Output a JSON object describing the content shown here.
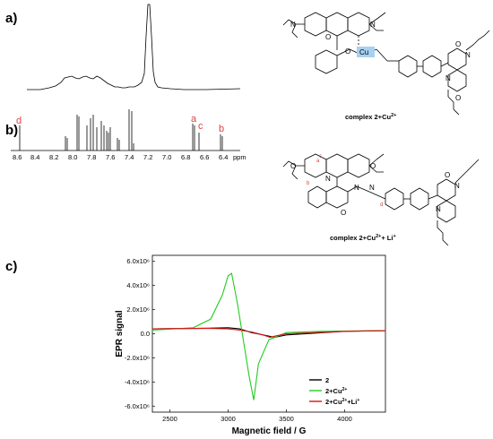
{
  "panels": {
    "a": {
      "label": "a)",
      "complex_caption": "complex 2+Cu",
      "complex_sup": "2+"
    },
    "b": {
      "label": "b)",
      "complex_caption": "complex 2+Cu",
      "complex_sup": "2+",
      "caption_tail": "+ Li",
      "caption_tail_sup": "+",
      "axis_ticks": [
        "8.6",
        "8.4",
        "8.2",
        "8.0",
        "7.8",
        "7.6",
        "7.4",
        "7.2",
        "7.0",
        "6.8",
        "6.6",
        "6.4"
      ],
      "axis_unit": "ppm",
      "peak_labels": [
        "a",
        "c",
        "b",
        "d"
      ]
    },
    "c": {
      "label": "c)"
    }
  },
  "chemistry": {
    "cu_label": "Cu",
    "atoms": [
      "N",
      "N",
      "O",
      "O",
      "O",
      "N",
      "N",
      "O",
      "O",
      "O",
      "N",
      "N",
      "N",
      "O",
      "O",
      "N",
      "N",
      "a",
      "b",
      "c",
      "d"
    ]
  },
  "chart_data": {
    "type": "line",
    "title": "",
    "xlabel": "Magnetic field / G",
    "ylabel": "EPR signal",
    "xlim": [
      2350,
      4350
    ],
    "ylim": [
      -6500000.0,
      6500000.0
    ],
    "x_ticks": [
      "2500",
      "3000",
      "3500",
      "4000"
    ],
    "y_ticks": [
      "6.0x10⁶",
      "4.0x10⁶",
      "2.0x10⁶",
      "0.0",
      "-2.0x10⁶",
      "-4.0x10⁶",
      "-6.0x10⁶"
    ],
    "legend_position": "bottom-right",
    "series": [
      {
        "name": "2",
        "color": "#000000",
        "x": [
          2350,
          2800,
          3000,
          3100,
          3150,
          3200,
          3250,
          3300,
          3400,
          3500,
          4000,
          4350
        ],
        "y": [
          400000.0,
          450000.0,
          500000.0,
          400000.0,
          250000.0,
          100000.0,
          0.0,
          -100000.0,
          -300000.0,
          -100000.0,
          200000.0,
          250000.0
        ]
      },
      {
        "name": "2+Cu",
        "name_sup": "2+",
        "color": "#22cc22",
        "x": [
          2350,
          2700,
          2850,
          2950,
          3000,
          3030,
          3080,
          3130,
          3180,
          3220,
          3260,
          3350,
          3500,
          3800,
          4350
        ],
        "y": [
          300000.0,
          500000.0,
          1200000.0,
          3200000.0,
          4800000.0,
          5000000.0,
          2500000.0,
          -500000.0,
          -3500000.0,
          -5500000.0,
          -2500000.0,
          -500000.0,
          100000.0,
          200000.0,
          250000.0
        ]
      },
      {
        "name": "2+Cu",
        "name_sup": "2+",
        "name_tail": "+Li",
        "name_tail_sup": "+",
        "color": "#dd1111",
        "x": [
          2350,
          2800,
          3000,
          3100,
          3200,
          3300,
          3360,
          3400,
          3500,
          4000,
          4350
        ],
        "y": [
          400000.0,
          450000.0,
          400000.0,
          300000.0,
          150000.0,
          -100000.0,
          -300000.0,
          -200000.0,
          0.0,
          200000.0,
          250000.0
        ]
      }
    ]
  }
}
